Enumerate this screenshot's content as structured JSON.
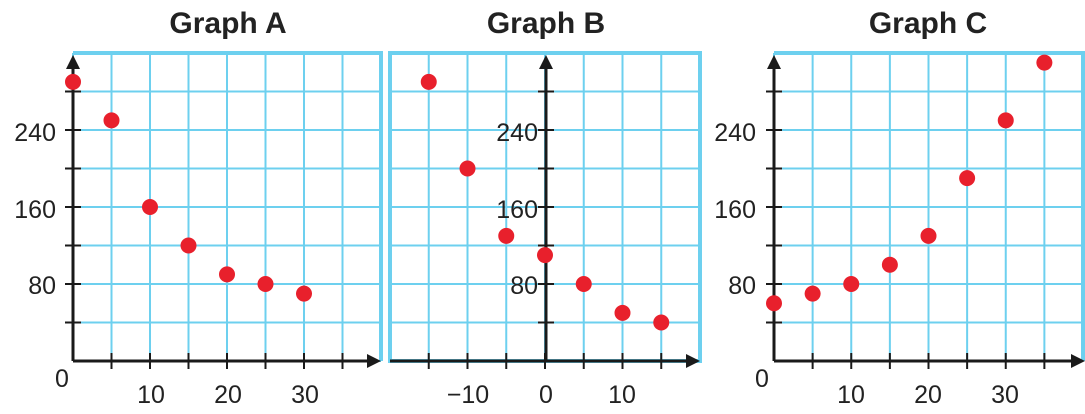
{
  "style": {
    "grid_color": "#6dd0ef",
    "axis_color": "#1a1a1a",
    "point_color": "#e8202c",
    "text_color": "#222222",
    "grid": true
  },
  "chart_data": [
    {
      "type": "scatter",
      "title": "Graph A",
      "xlabel": "",
      "ylabel": "",
      "xlim": [
        0,
        40
      ],
      "ylim": [
        0,
        320
      ],
      "x_ticks": [
        0,
        10,
        20,
        30
      ],
      "y_ticks": [
        80,
        160,
        240
      ],
      "x": [
        0,
        5,
        10,
        15,
        20,
        25,
        30
      ],
      "y": [
        290,
        250,
        160,
        120,
        90,
        80,
        70
      ]
    },
    {
      "type": "scatter",
      "title": "Graph B",
      "xlabel": "",
      "ylabel": "",
      "xlim": [
        -20,
        20
      ],
      "ylim": [
        0,
        320
      ],
      "x_ticks": [
        -10,
        0,
        10
      ],
      "y_ticks": [
        80,
        160,
        240
      ],
      "x": [
        -15,
        -10,
        -5,
        0,
        5,
        10,
        15
      ],
      "y": [
        290,
        200,
        130,
        110,
        80,
        50,
        40
      ]
    },
    {
      "type": "scatter",
      "title": "Graph C",
      "xlabel": "",
      "ylabel": "",
      "xlim": [
        0,
        40
      ],
      "ylim": [
        0,
        320
      ],
      "x_ticks": [
        0,
        10,
        20,
        30
      ],
      "y_ticks": [
        80,
        160,
        240
      ],
      "x": [
        0,
        5,
        10,
        15,
        20,
        25,
        30,
        35
      ],
      "y": [
        60,
        70,
        80,
        100,
        130,
        190,
        250,
        310
      ]
    }
  ],
  "labels": {
    "a_title": "Graph A",
    "b_title": "Graph B",
    "c_title": "Graph C",
    "a_x0": "0",
    "a_x10": "10",
    "a_x20": "20",
    "a_x30": "30",
    "a_y80": "80",
    "a_y160": "160",
    "a_y240": "240",
    "b_xm10": "−10",
    "b_x0": "0",
    "b_x10": "10",
    "b_y80": "80",
    "b_y160": "160",
    "b_y240": "240",
    "c_x0": "0",
    "c_x10": "10",
    "c_x20": "20",
    "c_x30": "30",
    "c_y80": "80",
    "c_y160": "160",
    "c_y240": "240"
  }
}
